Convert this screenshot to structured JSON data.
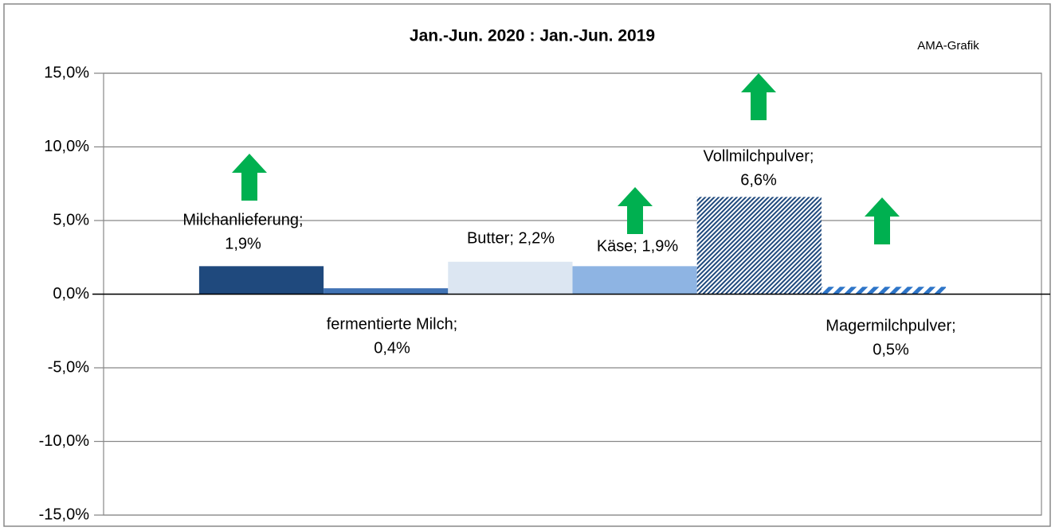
{
  "chart_data": {
    "type": "bar",
    "title": "Jan.-Jun. 2020 : Jan.-Jun. 2019",
    "annotation": "AMA-Grafik",
    "values": [
      1.9,
      0.4,
      2.2,
      1.9,
      6.6,
      0.5
    ],
    "value_labels": [
      [
        "Milchanlieferung;",
        "1,9%"
      ],
      [
        "fermentierte Milch;",
        "0,4%"
      ],
      [
        "Butter; 2,2%"
      ],
      [
        "Käse; 1,9%"
      ],
      [
        "Vollmilchpulver;",
        "6,6%"
      ],
      [
        "Magermilchpulver;",
        "0,5%"
      ]
    ],
    "colors": [
      "#1f497d",
      "#4173b4",
      "#dce6f2",
      "#8eb4e3",
      "#1f497d",
      "#2e75c8"
    ],
    "hatch": [
      "none",
      "none",
      "none",
      "none",
      "fine",
      "wide"
    ],
    "ylim": [
      -15,
      15
    ],
    "yticks": [
      {
        "value": -15,
        "label": "-15,0%"
      },
      {
        "value": -10,
        "label": "-10,0%"
      },
      {
        "value": -5,
        "label": "-5,0%"
      },
      {
        "value": 0,
        "label": "0,0%"
      },
      {
        "value": 5,
        "label": "5,0%"
      },
      {
        "value": 10,
        "label": "10,0%"
      },
      {
        "value": 15,
        "label": "15,0%"
      }
    ],
    "grid": true
  }
}
